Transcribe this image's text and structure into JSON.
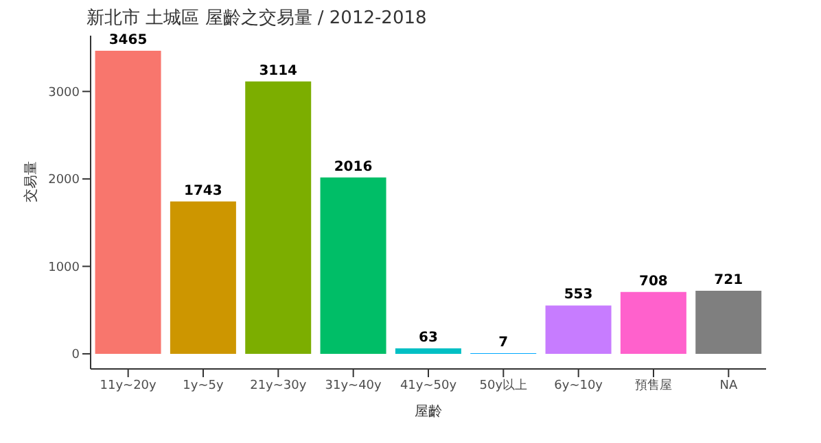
{
  "chart_data": {
    "type": "bar",
    "title": "新北市 土城區 屋齡之交易量 / 2012-2018",
    "xlabel": "屋齡",
    "ylabel": "交易量",
    "categories": [
      "11y~20y",
      "1y~5y",
      "21y~30y",
      "31y~40y",
      "41y~50y",
      "50y以上",
      "6y~10y",
      "預售屋",
      "NA"
    ],
    "values": [
      3465,
      1743,
      3114,
      2016,
      63,
      7,
      553,
      708,
      721
    ],
    "colors": [
      "#f8766d",
      "#cd9600",
      "#7cae00",
      "#00be67",
      "#00bfc4",
      "#00a9ff",
      "#c77cff",
      "#ff61cc",
      "#7f7f7f"
    ],
    "ylim": [
      -173,
      3638
    ],
    "yticks": [
      0,
      1000,
      2000,
      3000
    ],
    "data_labels": true
  }
}
